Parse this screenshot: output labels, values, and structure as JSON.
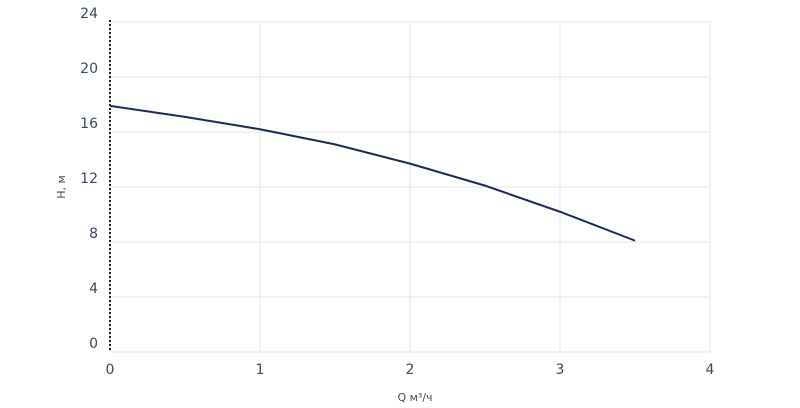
{
  "chart_data": {
    "type": "line",
    "x_label": "Q м³/ч",
    "y_label": "H, м",
    "x": [
      0,
      0.5,
      1,
      1.5,
      2,
      2.5,
      3,
      3.5
    ],
    "series": [
      {
        "name": "H",
        "color": "#1b2a5e",
        "values": [
          17.9,
          17.1,
          16.2,
          15.1,
          13.7,
          12.1,
          10.2,
          8.1
        ]
      }
    ],
    "xlim": [
      0,
      4
    ],
    "xticks": [
      0,
      1,
      2,
      3,
      4
    ],
    "ylim": [
      0,
      24
    ],
    "yticks": [
      0,
      4,
      8,
      12,
      16,
      20,
      24
    ],
    "grid": true
  }
}
